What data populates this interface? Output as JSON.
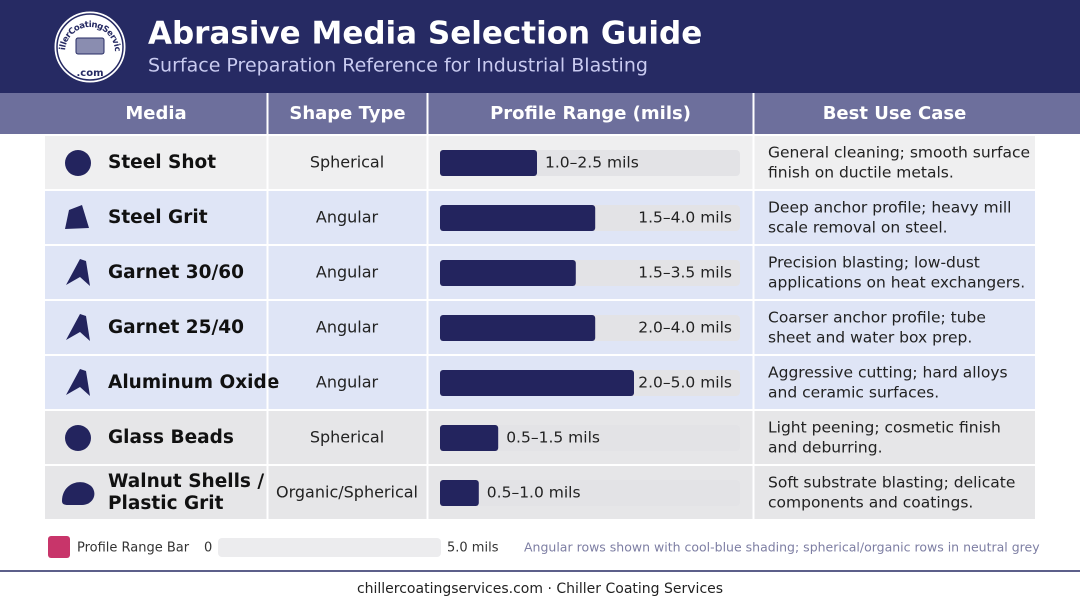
{
  "header": {
    "logo_text": "ChillerCoatingServices",
    "logo_suffix": ".com",
    "title": "Abrasive Media Selection Guide",
    "subtitle": "Surface Preparation Reference for Industrial Blasting"
  },
  "table": {
    "columns": [
      "Media",
      "Shape Type",
      "Profile Range (mils)",
      "Best Use Case"
    ],
    "rows": [
      {
        "media": [
          "Steel Shot"
        ],
        "shape": "Spherical",
        "profile": {
          "label": "1.0–2.5 mils",
          "max": 2.5
        },
        "use": [
          "General cleaning; smooth surface",
          "finish on ductile metals."
        ],
        "icon": "sphere",
        "color": "#efeff0"
      },
      {
        "media": [
          "Steel Grit"
        ],
        "shape": "Angular",
        "profile": {
          "label": "1.5–4.0 mils",
          "max": 4.0
        },
        "use": [
          "Deep anchor profile; heavy mill",
          "scale removal on steel."
        ],
        "icon": "grit",
        "color": "#dfe5f6"
      },
      {
        "media": [
          "Garnet 30/60"
        ],
        "shape": "Angular",
        "profile": {
          "label": "1.5–3.5 mils",
          "max": 3.5
        },
        "use": [
          "Precision blasting; low-dust",
          "applications on heat exchangers."
        ],
        "icon": "shard",
        "color": "#dfe5f6"
      },
      {
        "media": [
          "Garnet 25/40"
        ],
        "shape": "Angular",
        "profile": {
          "label": "2.0–4.0 mils",
          "max": 4.0
        },
        "use": [
          "Coarser anchor profile; tube",
          "sheet and water box prep."
        ],
        "icon": "shard",
        "color": "#dfe5f6"
      },
      {
        "media": [
          "Aluminum Oxide"
        ],
        "shape": "Angular",
        "profile": {
          "label": "2.0–5.0 mils",
          "max": 5.0
        },
        "use": [
          "Aggressive cutting; hard alloys",
          "and ceramic surfaces."
        ],
        "icon": "shard",
        "color": "#dfe5f6"
      },
      {
        "media": [
          "Glass Beads"
        ],
        "shape": "Spherical",
        "profile": {
          "label": "0.5–1.5 mils",
          "max": 1.5
        },
        "use": [
          "Light peening; cosmetic finish",
          "and deburring."
        ],
        "icon": "sphere",
        "color": "#e6e6e8"
      },
      {
        "media": [
          "Walnut Shells /",
          "Plastic Grit"
        ],
        "shape": "Organic/Spherical",
        "profile": {
          "label": "0.5–1.0 mils",
          "max": 1.0
        },
        "use": [
          "Soft substrate blasting; delicate",
          "components and coatings."
        ],
        "icon": "shell",
        "color": "#e6e6e8"
      }
    ]
  },
  "legend": {
    "label": "Profile Range Bar",
    "color": "#c8356a",
    "scale": {
      "min": 0,
      "max": {
        "value": 5,
        "label": "5.0 mils"
      }
    },
    "note": "Angular rows shown with cool-blue shading; spherical/organic rows in neutral grey"
  },
  "footer": "chillercoatingservices.com · Chiller Coating Services"
}
